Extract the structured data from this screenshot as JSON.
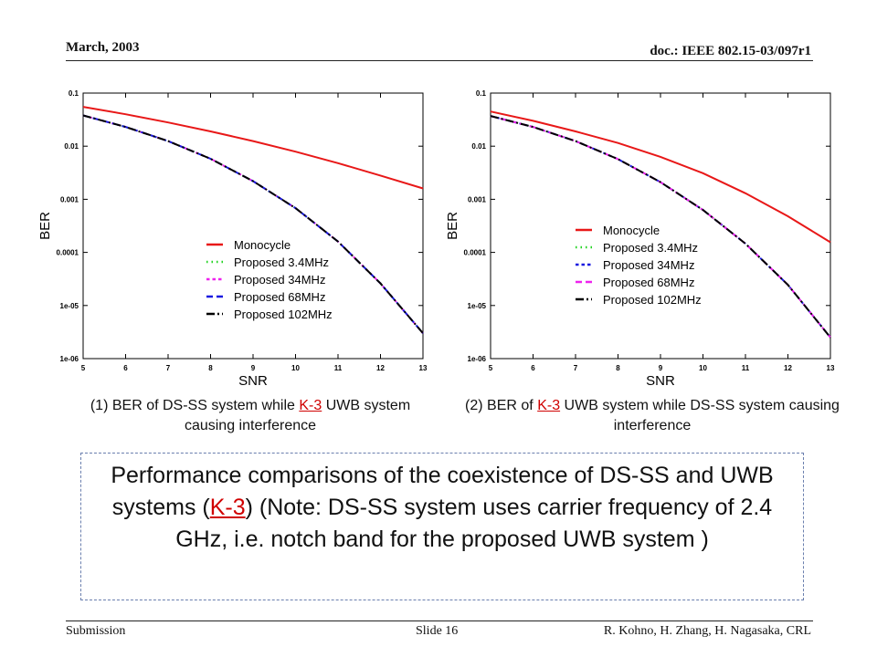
{
  "header": {
    "date": "March, 2003",
    "doc": "doc.: IEEE 802.15-03/097r1"
  },
  "footer": {
    "submission": "Submission",
    "slide": "Slide 16",
    "authors": "R. Kohno, H. Zhang, H. Nagasaka, CRL"
  },
  "colors": {
    "red": "#e81818",
    "green": "#22d322",
    "magenta": "#ee22ee",
    "blue": "#1a1ae0",
    "black": "#000000",
    "accent_link": "#d00000",
    "box_border": "#6a7fae"
  },
  "captions": {
    "left": {
      "pre": "(1) BER of DS-SS system while ",
      "link": "K-3",
      "post": " UWB system causing interference"
    },
    "right": {
      "pre": "(2) BER of ",
      "link": "K-3",
      "post": " UWB system while DS-SS system causing interference"
    }
  },
  "summary": {
    "pre": "Performance comparisons of the coexistence of DS-SS and UWB systems (",
    "link": "K-3",
    "post": ") (Note: DS-SS system uses carrier frequency of 2.4 GHz, i.e. notch band for the proposed UWB system )"
  },
  "chart_data": [
    {
      "type": "line",
      "xlabel": "SNR",
      "ylabel": "BER",
      "yscale": "log",
      "xlim": [
        5,
        13
      ],
      "ylim": [
        1e-06,
        0.1
      ],
      "x_ticks": [
        "5",
        "6",
        "7",
        "8",
        "9",
        "10",
        "11",
        "12",
        "13"
      ],
      "y_ticks": [
        "1e-06",
        "1e-05",
        "0.0001",
        "0.001",
        "0.01",
        "0.1"
      ],
      "grid": false,
      "legend_position": "center-right",
      "x": [
        5,
        6,
        7,
        8,
        9,
        10,
        11,
        12,
        13
      ],
      "series": [
        {
          "name": "Monocycle",
          "color": "#e81818",
          "dash": "solid",
          "values": [
            0.055,
            0.04,
            0.028,
            0.019,
            0.0125,
            0.0079,
            0.0048,
            0.0028,
            0.0016
          ]
        },
        {
          "name": "Proposed 3.4MHz",
          "color": "#22d322",
          "dash": "dotted",
          "values": [
            0.038,
            0.023,
            0.0125,
            0.0058,
            0.0022,
            0.00068,
            0.00016,
            2.6e-05,
            3e-06
          ]
        },
        {
          "name": "Proposed 34MHz",
          "color": "#ee22ee",
          "dash": "short-dash",
          "values": [
            0.038,
            0.023,
            0.0125,
            0.0058,
            0.0022,
            0.00068,
            0.00016,
            2.6e-05,
            3e-06
          ]
        },
        {
          "name": "Proposed 68MHz",
          "color": "#1a1ae0",
          "dash": "dash",
          "values": [
            0.038,
            0.023,
            0.0125,
            0.0058,
            0.0022,
            0.00068,
            0.00016,
            2.6e-05,
            3e-06
          ]
        },
        {
          "name": "Proposed 102MHz",
          "color": "#000000",
          "dash": "dash-dot",
          "values": [
            0.038,
            0.023,
            0.0125,
            0.0058,
            0.0022,
            0.00068,
            0.00016,
            2.6e-05,
            3e-06
          ]
        }
      ]
    },
    {
      "type": "line",
      "xlabel": "SNR",
      "ylabel": "BER",
      "yscale": "log",
      "xlim": [
        5,
        13
      ],
      "ylim": [
        1e-06,
        0.1
      ],
      "x_ticks": [
        "5",
        "6",
        "7",
        "8",
        "9",
        "10",
        "11",
        "12",
        "13"
      ],
      "y_ticks": [
        "1e-06",
        "1e-05",
        "0.0001",
        "0.001",
        "0.01",
        "0.1"
      ],
      "grid": false,
      "legend_position": "center-right",
      "x": [
        5,
        6,
        7,
        8,
        9,
        10,
        11,
        12,
        13
      ],
      "series": [
        {
          "name": "Monocycle",
          "color": "#e81818",
          "dash": "solid",
          "values": [
            0.045,
            0.03,
            0.019,
            0.0115,
            0.0063,
            0.0031,
            0.0013,
            0.00048,
            0.000155
          ]
        },
        {
          "name": "Proposed 3.4MHz",
          "color": "#22d322",
          "dash": "dotted",
          "values": [
            0.037,
            0.023,
            0.0125,
            0.0057,
            0.0021,
            0.00063,
            0.000146,
            2.45e-05,
            2.5e-06
          ]
        },
        {
          "name": "Proposed 34MHz",
          "color": "#1a1ae0",
          "dash": "short-dash",
          "values": [
            0.037,
            0.023,
            0.0125,
            0.0057,
            0.0021,
            0.00063,
            0.000146,
            2.45e-05,
            2.5e-06
          ]
        },
        {
          "name": "Proposed 68MHz",
          "color": "#ee22ee",
          "dash": "dash",
          "values": [
            0.037,
            0.023,
            0.0125,
            0.0057,
            0.0021,
            0.00063,
            0.000146,
            2.45e-05,
            2.5e-06
          ]
        },
        {
          "name": "Proposed 102MHz",
          "color": "#000000",
          "dash": "dash-dot",
          "values": [
            0.037,
            0.023,
            0.0125,
            0.0057,
            0.0021,
            0.00063,
            0.000146,
            2.45e-05,
            2.5e-06
          ]
        }
      ]
    }
  ]
}
